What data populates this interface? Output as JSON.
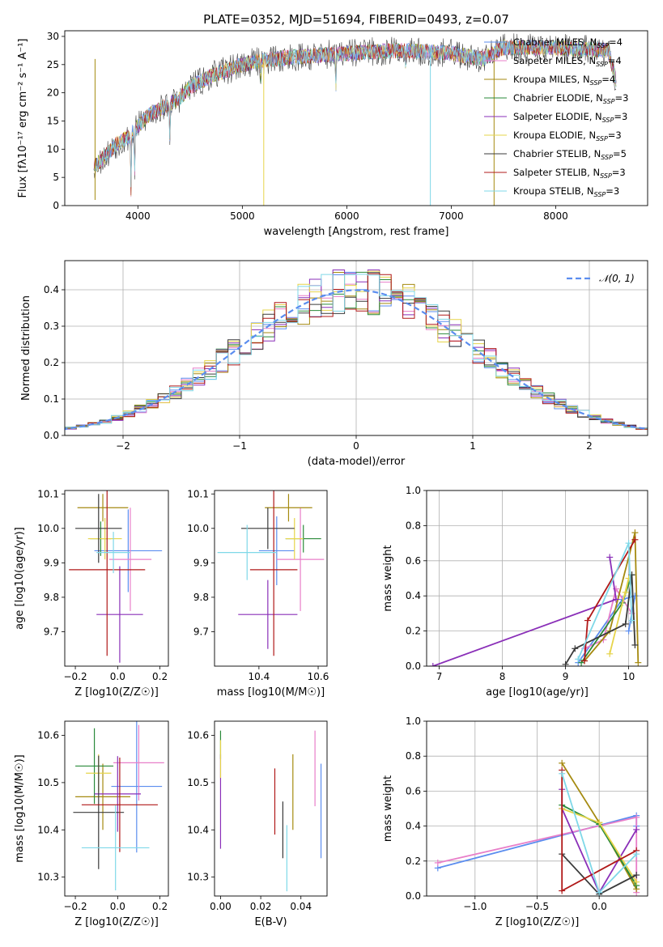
{
  "figure_title": "PLATE=0352, MJD=51694, FIBERID=0493, z=0.07",
  "model_colors": [
    "#5b8def",
    "#e87fc9",
    "#a58a10",
    "#2a8a3a",
    "#8a2fb8",
    "#e6d44a",
    "#3a3a3a",
    "#b01818",
    "#7fd8e8"
  ],
  "model_names": [
    "Chabrier MILES, N_SSP=4",
    "Salpeter MILES, N_SSP=4",
    "Kroupa MILES, N_SSP=4",
    "Chabrier ELODIE, N_SSP=3",
    "Salpeter ELODIE, N_SSP=3",
    "Kroupa ELODIE, N_SSP=3",
    "Chabrier STELIB, N_SSP=5",
    "Salpeter STELIB, N_SSP=3",
    "Kroupa STELIB, N_SSP=3"
  ],
  "chart_data": [
    {
      "id": "spectrum",
      "type": "line",
      "title": "PLATE=0352, MJD=51694, FIBERID=0493, z=0.07",
      "xlabel": "wavelength [Angstrom, rest frame]",
      "ylabel": "Flux [fλ10⁻¹⁷ erg cm⁻² s⁻¹ A⁻¹]",
      "xlim": [
        3300,
        8880
      ],
      "ylim": [
        0,
        31
      ],
      "xticks": [
        4000,
        5000,
        6000,
        7000,
        8000
      ],
      "yticks": [
        0,
        5,
        10,
        15,
        20,
        25,
        30
      ],
      "legend": {
        "position": "top-right"
      },
      "continuum": {
        "x": [
          3580,
          3700,
          3800,
          3900,
          4000,
          4100,
          4200,
          4300,
          4400,
          4500,
          4700,
          5000,
          5300,
          5600,
          6000,
          6500,
          7000,
          7300,
          7500,
          8000,
          8500,
          8580
        ],
        "y": [
          7,
          9,
          11,
          12,
          14,
          16,
          17,
          18,
          19,
          21,
          23,
          25,
          26,
          26.5,
          27,
          27.5,
          27,
          26,
          28,
          28,
          27.5,
          22
        ]
      },
      "absorption_features": [
        {
          "x": 3934,
          "depth": 10
        },
        {
          "x": 3969,
          "depth": 8
        },
        {
          "x": 4305,
          "depth": 6
        },
        {
          "x": 5175,
          "depth": 3
        },
        {
          "x": 5895,
          "depth": 6
        },
        {
          "x": 6563,
          "depth": 2
        }
      ],
      "spikes": [
        {
          "x": 3590,
          "y": 1
        },
        {
          "x": 5205,
          "y": 0
        },
        {
          "x": 6800,
          "y": 0
        },
        {
          "x": 7410,
          "y": 0
        }
      ]
    },
    {
      "id": "residual_hist",
      "type": "histogram",
      "xlabel": "(data-model)/error",
      "ylabel": "Normed distribution",
      "xlim": [
        -2.5,
        2.5
      ],
      "ylim": [
        0,
        0.48
      ],
      "xticks": [
        -2,
        -1,
        0,
        1,
        2
      ],
      "yticks": [
        0.0,
        0.1,
        0.2,
        0.3,
        0.4
      ],
      "bin_width": 0.1,
      "reference_curve": {
        "name": "N(0,1)",
        "label": "𝒩(0, 1)",
        "style": "dashed",
        "color": "#5b8def",
        "mean": 0,
        "sigma": 1
      },
      "legend": {
        "position": "top-right"
      }
    },
    {
      "id": "age_vs_Z",
      "type": "scatter",
      "xlabel": "Z [log10(Z/Z☉)]",
      "ylabel": "age [log10(age/yr)]",
      "xlim": [
        -0.25,
        0.24
      ],
      "ylim": [
        9.6,
        10.11
      ],
      "xticks": [
        -0.2,
        0.0,
        0.2
      ],
      "yticks": [
        9.7,
        9.8,
        9.9,
        10.0,
        10.1
      ],
      "points": [
        {
          "model": 0,
          "x": 0.05,
          "y": 9.935,
          "xerr": 0.16,
          "yerr": 0.12
        },
        {
          "model": 1,
          "x": 0.06,
          "y": 9.91,
          "xerr": 0.1,
          "yerr": 0.15
        },
        {
          "model": 2,
          "x": -0.07,
          "y": 10.06,
          "xerr": 0.12,
          "yerr": 0.04
        },
        {
          "model": 3,
          "x": -0.08,
          "y": 9.97,
          "xerr": 0.05,
          "yerr": 0.05
        },
        {
          "model": 4,
          "x": 0.01,
          "y": 9.75,
          "xerr": 0.11,
          "yerr": 0.14
        },
        {
          "model": 5,
          "x": -0.06,
          "y": 9.97,
          "xerr": 0.08,
          "yerr": 0.06
        },
        {
          "model": 6,
          "x": -0.09,
          "y": 10.0,
          "xerr": 0.11,
          "yerr": 0.1
        },
        {
          "model": 7,
          "x": -0.05,
          "y": 9.88,
          "xerr": 0.18,
          "yerr": 0.25
        },
        {
          "model": 8,
          "x": -0.02,
          "y": 9.93,
          "xerr": 0.08,
          "yerr": 0.06
        }
      ]
    },
    {
      "id": "age_vs_mass",
      "type": "scatter",
      "xlabel": "mass [log10(M/M☉)]",
      "ylabel": "",
      "xlim": [
        10.25,
        10.63
      ],
      "ylim": [
        9.6,
        10.11
      ],
      "xticks": [
        10.4,
        10.6
      ],
      "yticks": [
        9.7,
        9.8,
        9.9,
        10.0,
        10.1
      ],
      "points": [
        {
          "model": 0,
          "x": 10.46,
          "y": 9.935,
          "xerr": 0.06,
          "yerr": 0.1
        },
        {
          "model": 1,
          "x": 10.54,
          "y": 9.91,
          "xerr": 0.08,
          "yerr": 0.15
        },
        {
          "model": 2,
          "x": 10.5,
          "y": 10.06,
          "xerr": 0.08,
          "yerr": 0.04
        },
        {
          "model": 3,
          "x": 10.55,
          "y": 9.97,
          "xerr": 0.06,
          "yerr": 0.04
        },
        {
          "model": 4,
          "x": 10.43,
          "y": 9.75,
          "xerr": 0.1,
          "yerr": 0.1
        },
        {
          "model": 5,
          "x": 10.52,
          "y": 9.97,
          "xerr": 0.03,
          "yerr": 0.06
        },
        {
          "model": 6,
          "x": 10.43,
          "y": 10.0,
          "xerr": 0.09,
          "yerr": 0.06
        },
        {
          "model": 7,
          "x": 10.45,
          "y": 9.88,
          "xerr": 0.08,
          "yerr": 0.25
        },
        {
          "model": 8,
          "x": 10.36,
          "y": 9.93,
          "xerr": 0.1,
          "yerr": 0.08
        }
      ]
    },
    {
      "id": "mass_weight_vs_age",
      "type": "line",
      "xlabel": "age [log10(age/yr)]",
      "ylabel": "mass weight",
      "xlim": [
        6.8,
        10.3
      ],
      "ylim": [
        0,
        1
      ],
      "xticks": [
        7,
        8,
        9,
        10
      ],
      "yticks": [
        0.0,
        0.2,
        0.4,
        0.6,
        0.8,
        1.0
      ],
      "series": [
        {
          "model": 0,
          "x": [
            9.2,
            9.9,
            10.1,
            10.0
          ],
          "y": [
            0.02,
            0.38,
            0.4,
            0.2
          ]
        },
        {
          "model": 1,
          "x": [
            9.3,
            9.6,
            9.8,
            10.05
          ],
          "y": [
            0.1,
            0.15,
            0.44,
            0.3
          ]
        },
        {
          "model": 2,
          "x": [
            9.3,
            9.7,
            10.1,
            10.15
          ],
          "y": [
            0.03,
            0.2,
            0.76,
            0.02
          ]
        },
        {
          "model": 3,
          "x": [
            9.25,
            9.9,
            10.05
          ],
          "y": [
            0.02,
            0.36,
            0.52
          ]
        },
        {
          "model": 4,
          "x": [
            6.9,
            9.8,
            9.7
          ],
          "y": [
            0.0,
            0.38,
            0.62
          ]
        },
        {
          "model": 5,
          "x": [
            9.7,
            10.0,
            9.95
          ],
          "y": [
            0.07,
            0.5,
            0.42
          ]
        },
        {
          "model": 6,
          "x": [
            9.0,
            9.15,
            9.95,
            10.05,
            10.1
          ],
          "y": [
            0.01,
            0.1,
            0.24,
            0.52,
            0.12
          ]
        },
        {
          "model": 7,
          "x": [
            9.3,
            9.35,
            10.1
          ],
          "y": [
            0.03,
            0.26,
            0.72
          ]
        },
        {
          "model": 8,
          "x": [
            9.2,
            10.0,
            10.05
          ],
          "y": [
            0.04,
            0.7,
            0.26
          ]
        }
      ]
    },
    {
      "id": "mass_vs_Z",
      "type": "scatter",
      "xlabel": "Z [log10(Z/Z☉)]",
      "ylabel": "mass [log10(M/M☉)]",
      "xlim": [
        -0.25,
        0.24
      ],
      "ylim": [
        10.26,
        10.63
      ],
      "xticks": [
        -0.2,
        0.0,
        0.2
      ],
      "yticks": [
        10.3,
        10.4,
        10.5,
        10.6
      ],
      "points": [
        {
          "model": 0,
          "x": 0.09,
          "y": 10.492,
          "xerr": 0.12,
          "yerr": 0.14
        },
        {
          "model": 1,
          "x": 0.1,
          "y": 10.542,
          "xerr": 0.12,
          "yerr": 0.08
        },
        {
          "model": 2,
          "x": -0.07,
          "y": 10.47,
          "xerr": 0.13,
          "yerr": 0.07
        },
        {
          "model": 3,
          "x": -0.11,
          "y": 10.535,
          "xerr": 0.09,
          "yerr": 0.08
        },
        {
          "model": 4,
          "x": 0.0,
          "y": 10.476,
          "xerr": 0.11,
          "yerr": 0.08
        },
        {
          "model": 5,
          "x": -0.09,
          "y": 10.52,
          "xerr": 0.06,
          "yerr": 0.04
        },
        {
          "model": 6,
          "x": -0.09,
          "y": 10.437,
          "xerr": 0.12,
          "yerr": 0.12
        },
        {
          "model": 7,
          "x": 0.01,
          "y": 10.453,
          "xerr": 0.18,
          "yerr": 0.1
        },
        {
          "model": 8,
          "x": -0.01,
          "y": 10.362,
          "xerr": 0.16,
          "yerr": 0.09
        }
      ]
    },
    {
      "id": "mass_vs_EBV",
      "type": "scatter",
      "xlabel": "E(B-V)",
      "ylabel": "",
      "xlim": [
        -0.003,
        0.053
      ],
      "ylim": [
        10.26,
        10.63
      ],
      "xticks": [
        0.0,
        0.02,
        0.04
      ],
      "yticks": [
        10.3,
        10.4,
        10.5,
        10.6
      ],
      "points": [
        {
          "model": 0,
          "x": 0.05,
          "y": 10.44,
          "yerr": 0.1
        },
        {
          "model": 1,
          "x": 0.047,
          "y": 10.53,
          "yerr": 0.08
        },
        {
          "model": 2,
          "x": 0.036,
          "y": 10.48,
          "yerr": 0.08
        },
        {
          "model": 3,
          "x": 0.0,
          "y": 10.58,
          "yerr": 0.03
        },
        {
          "model": 4,
          "x": 0.0,
          "y": 10.46,
          "yerr": 0.1
        },
        {
          "model": 5,
          "x": 0.0,
          "y": 10.55,
          "yerr": 0.04
        },
        {
          "model": 6,
          "x": 0.031,
          "y": 10.4,
          "yerr": 0.06
        },
        {
          "model": 7,
          "x": 0.027,
          "y": 10.46,
          "yerr": 0.07
        },
        {
          "model": 8,
          "x": 0.033,
          "y": 10.34,
          "yerr": 0.07
        }
      ]
    },
    {
      "id": "mass_weight_vs_Z",
      "type": "line",
      "xlabel": "Z [log10(Z/Z☉)]",
      "ylabel": "mass weight",
      "xlim": [
        -1.39,
        0.39
      ],
      "ylim": [
        0,
        1
      ],
      "xticks": [
        -1.0,
        -0.5,
        0.0
      ],
      "yticks": [
        0.0,
        0.2,
        0.4,
        0.6,
        0.8,
        1.0
      ],
      "series": [
        {
          "model": 0,
          "x": [
            -1.3,
            0.3,
            0.3
          ],
          "y": [
            0.16,
            0.46,
            0.4
          ]
        },
        {
          "model": 1,
          "x": [
            -1.3,
            0.3,
            0.3
          ],
          "y": [
            0.19,
            0.45,
            0.02
          ]
        },
        {
          "model": 2,
          "x": [
            -0.3,
            0.0,
            0.3
          ],
          "y": [
            0.76,
            0.42,
            0.04
          ]
        },
        {
          "model": 3,
          "x": [
            -0.3,
            0.0,
            0.3
          ],
          "y": [
            0.52,
            0.41,
            0.06
          ]
        },
        {
          "model": 4,
          "x": [
            -0.3,
            -0.3,
            0.0,
            0.3
          ],
          "y": [
            0.61,
            0.5,
            0.02,
            0.38
          ]
        },
        {
          "model": 5,
          "x": [
            -0.3,
            0.0,
            0.3
          ],
          "y": [
            0.5,
            0.42,
            0.08
          ]
        },
        {
          "model": 6,
          "x": [
            -0.3,
            0.0,
            0.3
          ],
          "y": [
            0.24,
            0.01,
            0.12
          ]
        },
        {
          "model": 7,
          "x": [
            -0.3,
            -0.3,
            0.3
          ],
          "y": [
            0.72,
            0.03,
            0.26
          ]
        },
        {
          "model": 8,
          "x": [
            -0.3,
            0.0,
            0.3
          ],
          "y": [
            0.7,
            0.02,
            0.24
          ]
        }
      ]
    }
  ]
}
